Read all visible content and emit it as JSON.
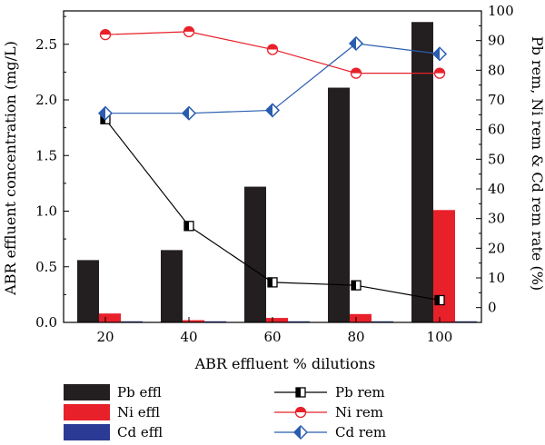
{
  "chart_data": {
    "type": "bar",
    "xlabel": "ABR effluent % dilutions",
    "ylabel": "ABR effluent concentration (mg/L)",
    "y2label": "Pb rem, Ni rem & Cd rem rate (%)",
    "categories": [
      "20",
      "40",
      "60",
      "80",
      "100"
    ],
    "ylim": [
      0,
      2.8
    ],
    "y2lim": [
      -5,
      100
    ],
    "yticks": [
      "0.0",
      "0.5",
      "1.0",
      "1.5",
      "2.0",
      "2.5"
    ],
    "y2ticks": [
      "0",
      "10",
      "20",
      "30",
      "40",
      "50",
      "60",
      "70",
      "80",
      "90",
      "100"
    ],
    "series": [
      {
        "name": "Pb effl",
        "kind": "bar",
        "axis": "left",
        "color": "#231f20",
        "values": [
          0.56,
          0.65,
          1.22,
          2.11,
          2.7
        ]
      },
      {
        "name": "Ni effl",
        "kind": "bar",
        "axis": "left",
        "color": "#e8202a",
        "values": [
          0.08,
          0.02,
          0.04,
          0.075,
          1.01
        ]
      },
      {
        "name": "Cd effl",
        "kind": "bar",
        "axis": "left",
        "color": "#2b3b95",
        "values": [
          0.01,
          0.01,
          0.01,
          0.01,
          0.01
        ]
      },
      {
        "name": "Pb rem",
        "kind": "line",
        "axis": "right",
        "marker": "half-square",
        "color": "#000000",
        "values": [
          63.5,
          27.5,
          8.5,
          7.5,
          2.5
        ]
      },
      {
        "name": "Ni rem",
        "kind": "line",
        "axis": "right",
        "marker": "half-circle",
        "color": "#e8202a",
        "values": [
          92,
          93,
          87,
          79,
          79
        ]
      },
      {
        "name": "Cd rem",
        "kind": "line",
        "axis": "right",
        "marker": "diamond",
        "color": "#2a5db0",
        "values": [
          65.5,
          65.5,
          66.5,
          89,
          85.5
        ]
      }
    ],
    "grid": false,
    "legend_position": "bottom"
  }
}
